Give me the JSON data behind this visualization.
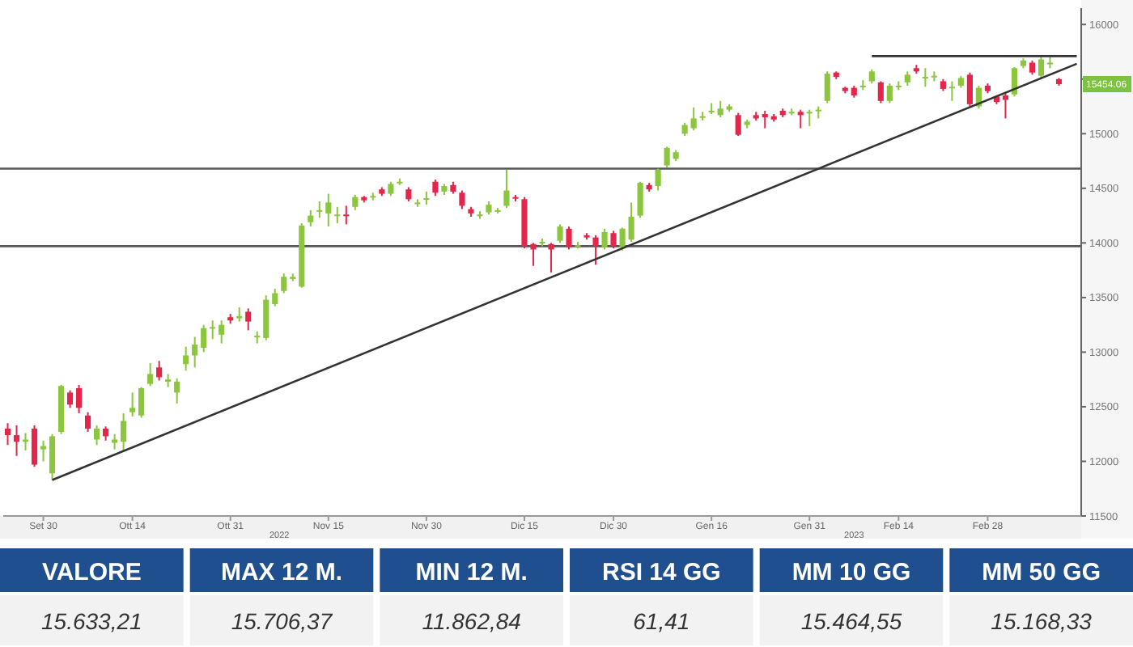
{
  "chart_data": [
    {
      "type": "candlestick",
      "ylim": [
        11500,
        16150
      ],
      "categories": [
        null,
        null,
        null,
        null,
        "Set 30",
        null,
        null,
        null,
        null,
        null,
        null,
        null,
        null,
        null,
        "Ott 14",
        null,
        null,
        null,
        null,
        null,
        null,
        null,
        null,
        null,
        null,
        "Ott 31",
        null,
        null,
        null,
        null,
        null,
        null,
        null,
        null,
        null,
        null,
        "Nov 15",
        null,
        null,
        null,
        null,
        null,
        null,
        null,
        null,
        null,
        null,
        "Nov 30",
        null,
        null,
        null,
        null,
        null,
        null,
        null,
        null,
        null,
        null,
        "Dic 15",
        null,
        null,
        null,
        null,
        null,
        null,
        null,
        null,
        null,
        "Dic 30",
        null,
        null,
        null,
        null,
        null,
        null,
        null,
        null,
        null,
        null,
        "Gen 16",
        null,
        null,
        null,
        null,
        null,
        null,
        null,
        null,
        null,
        null,
        "Gen 31",
        null,
        null,
        null,
        null,
        null,
        null,
        null,
        null,
        null,
        "Feb 14",
        null,
        null,
        null,
        null,
        null,
        null,
        null,
        null,
        null,
        "Feb 28",
        null,
        null,
        null,
        null,
        null,
        null,
        null,
        null,
        null,
        null
      ],
      "yticks": [
        11500,
        12000,
        12500,
        13000,
        13500,
        14000,
        14500,
        15000,
        {
          "value": 15500,
          "label": null
        },
        16000
      ],
      "series": [
        {
          "type": "candlestick",
          "ohlc": [
            [
              12300,
              12350,
              12150,
              12240
            ],
            [
              12240,
              12330,
              12050,
              12180
            ],
            [
              12180,
              12260,
              12100,
              12200
            ],
            [
              12300,
              12330,
              11950,
              11970
            ],
            [
              12110,
              12190,
              12000,
              12140
            ],
            [
              11890,
              12250,
              11830,
              12230
            ],
            [
              12270,
              12700,
              12250,
              12690
            ],
            [
              12630,
              12650,
              12490,
              12520
            ],
            [
              12670,
              12700,
              12440,
              12490
            ],
            [
              12420,
              12450,
              12270,
              12300
            ],
            [
              12200,
              12330,
              12150,
              12300
            ],
            [
              12300,
              12320,
              12190,
              12230
            ],
            [
              12170,
              12250,
              12110,
              12200
            ],
            [
              12180,
              12440,
              12090,
              12370
            ],
            [
              12450,
              12630,
              12410,
              12490
            ],
            [
              12420,
              12680,
              12400,
              12670
            ],
            [
              12710,
              12900,
              12690,
              12800
            ],
            [
              12860,
              12920,
              12740,
              12770
            ],
            [
              12730,
              12800,
              12680,
              12750
            ],
            [
              12630,
              12760,
              12530,
              12730
            ],
            [
              12890,
              13050,
              12830,
              12970
            ],
            [
              12970,
              13140,
              12860,
              13070
            ],
            [
              13040,
              13250,
              13000,
              13220
            ],
            [
              13220,
              13290,
              13120,
              13230
            ],
            [
              13160,
              13290,
              13080,
              13250
            ],
            [
              13320,
              13350,
              13260,
              13290
            ],
            [
              13310,
              13410,
              13280,
              13330
            ],
            [
              13370,
              13400,
              13200,
              13280
            ],
            [
              13140,
              13190,
              13080,
              13150
            ],
            [
              13130,
              13520,
              13110,
              13480
            ],
            [
              13440,
              13580,
              13420,
              13540
            ],
            [
              13560,
              13720,
              13540,
              13690
            ],
            [
              13670,
              13720,
              13650,
              13690
            ],
            [
              13600,
              14180,
              13590,
              14160
            ],
            [
              14190,
              14300,
              14150,
              14250
            ],
            [
              14290,
              14380,
              14230,
              14300
            ],
            [
              14270,
              14450,
              14150,
              14370
            ],
            [
              14250,
              14330,
              14180,
              14260
            ],
            [
              14260,
              14340,
              14170,
              14250
            ],
            [
              14330,
              14440,
              14300,
              14420
            ],
            [
              14420,
              14430,
              14370,
              14390
            ],
            [
              14420,
              14460,
              14390,
              14430
            ],
            [
              14490,
              14510,
              14430,
              14450
            ],
            [
              14450,
              14560,
              14430,
              14540
            ],
            [
              14550,
              14590,
              14530,
              14560
            ],
            [
              14490,
              14510,
              14380,
              14400
            ],
            [
              14360,
              14400,
              14330,
              14370
            ],
            [
              14400,
              14470,
              14350,
              14410
            ],
            [
              14560,
              14580,
              14430,
              14460
            ],
            [
              14470,
              14540,
              14440,
              14520
            ],
            [
              14530,
              14560,
              14450,
              14470
            ],
            [
              14460,
              14480,
              14310,
              14340
            ],
            [
              14310,
              14330,
              14240,
              14270
            ],
            [
              14250,
              14290,
              14220,
              14260
            ],
            [
              14280,
              14380,
              14260,
              14350
            ],
            [
              14290,
              14320,
              14270,
              14300
            ],
            [
              14340,
              14670,
              14320,
              14480
            ],
            [
              14420,
              14440,
              14380,
              14410
            ],
            [
              14400,
              14420,
              13950,
              13970
            ],
            [
              13990,
              14000,
              13790,
              13940
            ],
            [
              14000,
              14040,
              13970,
              14010
            ],
            [
              13990,
              14000,
              13730,
              13940
            ],
            [
              14020,
              14170,
              14000,
              14150
            ],
            [
              14130,
              14150,
              13940,
              13960
            ],
            [
              13970,
              14010,
              13950,
              13980
            ],
            [
              14070,
              14090,
              14030,
              14050
            ],
            [
              14050,
              14070,
              13800,
              13970
            ],
            [
              13960,
              14130,
              13940,
              14100
            ],
            [
              14090,
              14110,
              13950,
              13970
            ],
            [
              13960,
              14140,
              13930,
              14130
            ],
            [
              14030,
              14370,
              14010,
              14240
            ],
            [
              14250,
              14560,
              14230,
              14550
            ],
            [
              14530,
              14550,
              14470,
              14490
            ],
            [
              14520,
              14680,
              14480,
              14670
            ],
            [
              14710,
              14880,
              14690,
              14870
            ],
            [
              14770,
              14850,
              14750,
              14830
            ],
            [
              15000,
              15100,
              14980,
              15080
            ],
            [
              15050,
              15240,
              15030,
              15140
            ],
            [
              15150,
              15200,
              15120,
              15160
            ],
            [
              15200,
              15280,
              15180,
              15210
            ],
            [
              15170,
              15300,
              15150,
              15230
            ],
            [
              15220,
              15270,
              15200,
              15250
            ],
            [
              15170,
              15190,
              14980,
              14990
            ],
            [
              15080,
              15130,
              15050,
              15110
            ],
            [
              15170,
              15200,
              15120,
              15140
            ],
            [
              15180,
              15210,
              15050,
              15150
            ],
            [
              15160,
              15180,
              15110,
              15130
            ],
            [
              15210,
              15230,
              15150,
              15170
            ],
            [
              15190,
              15230,
              15170,
              15200
            ],
            [
              15200,
              15220,
              15050,
              15170
            ],
            [
              15190,
              15220,
              15070,
              15200
            ],
            [
              15210,
              15250,
              15140,
              15220
            ],
            [
              15300,
              15570,
              15280,
              15550
            ],
            [
              15560,
              15570,
              15500,
              15520
            ],
            [
              15420,
              15430,
              15370,
              15390
            ],
            [
              15420,
              15440,
              15330,
              15350
            ],
            [
              15430,
              15490,
              15400,
              15440
            ],
            [
              15480,
              15590,
              15460,
              15570
            ],
            [
              15470,
              15480,
              15280,
              15300
            ],
            [
              15300,
              15460,
              15280,
              15440
            ],
            [
              15430,
              15480,
              15400,
              15440
            ],
            [
              15470,
              15570,
              15440,
              15540
            ],
            [
              15600,
              15630,
              15550,
              15570
            ],
            [
              15510,
              15600,
              15430,
              15520
            ],
            [
              15520,
              15570,
              15480,
              15530
            ],
            [
              15480,
              15500,
              15390,
              15410
            ],
            [
              15420,
              15480,
              15300,
              15430
            ],
            [
              15440,
              15530,
              15420,
              15510
            ],
            [
              15540,
              15560,
              15250,
              15270
            ],
            [
              15250,
              15440,
              15230,
              15420
            ],
            [
              15440,
              15460,
              15370,
              15390
            ],
            [
              15340,
              15350,
              15270,
              15290
            ],
            [
              15350,
              15370,
              15140,
              15310
            ],
            [
              15360,
              15610,
              15340,
              15600
            ],
            [
              15620,
              15690,
              15600,
              15670
            ],
            [
              15650,
              15670,
              15540,
              15560
            ],
            [
              15530,
              15700,
              15510,
              15680
            ],
            [
              15640,
              15700,
              15600,
              15650
            ],
            [
              15500,
              15510,
              15440,
              15454.06
            ],
            null,
            null
          ],
          "colors": [
            "#e4264b",
            "#e4264b",
            "#8cc63f",
            "#e4264b",
            "#8cc63f",
            "#8cc63f",
            "#8cc63f",
            "#e4264b",
            "#e4264b",
            "#e4264b",
            "#8cc63f",
            "#e4264b",
            "#8cc63f",
            "#8cc63f",
            "#8cc63f",
            "#8cc63f",
            "#8cc63f",
            "#e4264b",
            "#8cc63f",
            "#8cc63f",
            "#8cc63f",
            "#8cc63f",
            "#8cc63f",
            "#8cc63f",
            "#8cc63f",
            "#e4264b",
            "#8cc63f",
            "#e4264b",
            "#8cc63f",
            "#8cc63f",
            "#8cc63f",
            "#8cc63f",
            "#8cc63f",
            "#8cc63f",
            "#8cc63f",
            "#8cc63f",
            "#8cc63f",
            "#8cc63f",
            "#e4264b",
            "#8cc63f",
            "#e4264b",
            "#8cc63f",
            "#e4264b",
            "#8cc63f",
            "#8cc63f",
            "#e4264b",
            "#8cc63f",
            "#8cc63f",
            "#e4264b",
            "#8cc63f",
            "#e4264b",
            "#e4264b",
            "#e4264b",
            "#8cc63f",
            "#8cc63f",
            "#8cc63f",
            "#8cc63f",
            "#e4264b",
            "#e4264b",
            "#e4264b",
            "#8cc63f",
            "#e4264b",
            "#8cc63f",
            "#e4264b",
            "#8cc63f",
            "#e4264b",
            "#e4264b",
            "#8cc63f",
            "#e4264b",
            "#8cc63f",
            "#8cc63f",
            "#8cc63f",
            "#e4264b",
            "#8cc63f",
            "#8cc63f",
            "#8cc63f",
            "#8cc63f",
            "#8cc63f",
            "#8cc63f",
            "#8cc63f",
            "#8cc63f",
            "#8cc63f",
            "#e4264b",
            "#8cc63f",
            "#e4264b",
            "#e4264b",
            "#e4264b",
            "#e4264b",
            "#8cc63f",
            "#e4264b",
            "#8cc63f",
            "#8cc63f",
            "#8cc63f",
            "#e4264b",
            "#e4264b",
            "#e4264b",
            "#8cc63f",
            "#8cc63f",
            "#e4264b",
            "#8cc63f",
            "#8cc63f",
            "#8cc63f",
            "#e4264b",
            "#8cc63f",
            "#8cc63f",
            "#e4264b",
            "#8cc63f",
            "#8cc63f",
            "#e4264b",
            "#8cc63f",
            "#e4264b",
            "#e4264b",
            "#e4264b",
            "#8cc63f",
            "#8cc63f",
            "#e4264b",
            "#8cc63f",
            "#8cc63f",
            "#e4264b",
            null,
            null
          ]
        },
        {
          "type": "line",
          "color": "#333333",
          "values": [
            null,
            null,
            null,
            null,
            null,
            11830,
            null,
            null,
            null,
            null,
            null,
            null,
            null,
            null,
            null,
            null,
            null,
            null,
            null,
            null,
            null,
            null,
            null,
            null,
            null,
            null,
            null,
            null,
            null,
            null,
            null,
            null,
            null,
            null,
            null,
            null,
            null,
            null,
            null,
            null,
            null,
            null,
            null,
            null,
            null,
            null,
            null,
            null,
            null,
            null,
            null,
            null,
            null,
            null,
            null,
            null,
            null,
            null,
            null,
            null,
            null,
            null,
            null,
            null,
            null,
            null,
            null,
            null,
            null,
            null,
            null,
            null,
            null,
            null,
            null,
            null,
            null,
            null,
            null,
            null,
            null,
            null,
            null,
            null,
            null,
            null,
            null,
            null,
            null,
            null,
            null,
            null,
            null,
            null,
            null,
            null,
            null,
            null,
            null,
            null,
            null,
            null,
            null,
            null,
            null,
            null,
            null,
            null,
            null,
            null,
            null,
            null,
            null,
            null,
            null,
            null,
            null,
            null,
            null,
            null,
            15640
          ]
        },
        {
          "type": "line",
          "color": "#333333",
          "values": [
            null,
            null,
            null,
            null,
            null,
            null,
            null,
            null,
            null,
            null,
            null,
            null,
            null,
            null,
            null,
            null,
            null,
            null,
            null,
            null,
            null,
            null,
            null,
            null,
            null,
            null,
            null,
            null,
            null,
            null,
            null,
            null,
            null,
            null,
            null,
            null,
            null,
            null,
            null,
            null,
            null,
            null,
            null,
            null,
            null,
            null,
            null,
            null,
            null,
            null,
            null,
            null,
            null,
            null,
            null,
            null,
            null,
            null,
            null,
            null,
            null,
            null,
            null,
            null,
            null,
            null,
            null,
            null,
            null,
            null,
            null,
            null,
            null,
            null,
            null,
            null,
            null,
            null,
            null,
            null,
            null,
            null,
            null,
            null,
            null,
            null,
            null,
            null,
            null,
            null,
            null,
            null,
            null,
            null,
            null,
            null,
            null,
            15710,
            null,
            null,
            null,
            null,
            null,
            null,
            null,
            null,
            null,
            null,
            null,
            null,
            null,
            null,
            null,
            null,
            null,
            null,
            null,
            null,
            null,
            null,
            15710
          ]
        }
      ],
      "ref_lines": [
        {
          "axis": "y",
          "value": 14680,
          "color": "#555555"
        },
        {
          "axis": "y",
          "value": 13970,
          "color": "#555555"
        }
      ],
      "annotations": [
        "2022",
        "2023",
        {
          "text": "15454.06",
          "y": 15454.06
        }
      ]
    },
    {
      "type": "other",
      "categories": [
        "VALORE",
        "MAX 12 M.",
        "MIN 12 M.",
        "RSI 14 GG",
        "MM 10 GG",
        "MM 50 GG"
      ],
      "value_labels": [
        "15.633,21",
        "15.706,37",
        "11.862,84",
        "61,41",
        "15.464,55",
        "15.168,33"
      ]
    }
  ]
}
